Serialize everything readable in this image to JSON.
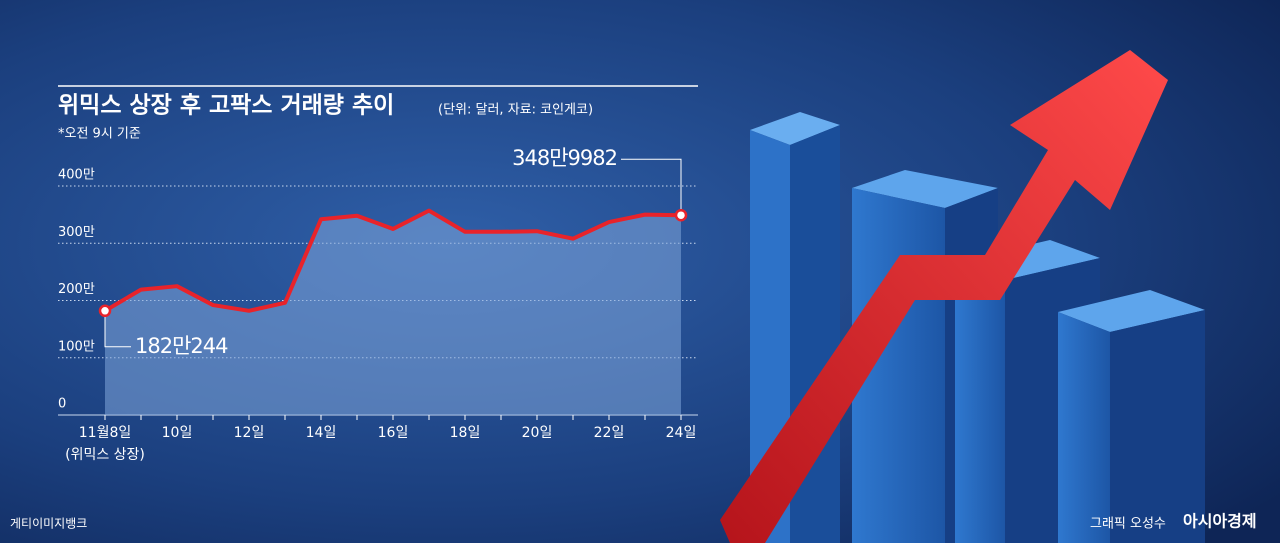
{
  "chart_data": {
    "type": "line",
    "title": "위믹스 상장 후 고팍스 거래량 추이",
    "subtitle": "(단위: 달러, 자료: 코인게코)",
    "note": "*오전 9시 기준",
    "annotation": "(위믹스 상장)",
    "image_credit": "게티이미지뱅크",
    "graphic_credit": "그래픽 오성수",
    "publisher": "아시아경제",
    "categories": [
      "11월8일",
      null,
      "10일",
      null,
      "12일",
      null,
      "14일",
      null,
      "16일",
      null,
      "18일",
      null,
      "20일",
      null,
      "22일",
      null,
      "24일"
    ],
    "series": [
      {
        "name": "고팍스 거래량",
        "color": "#e8232a",
        "values": [
          1820244,
          2190000,
          2250000,
          1920000,
          1820000,
          1960000,
          3420000,
          3480000,
          3250000,
          3570000,
          3200000,
          3200000,
          3210000,
          3080000,
          3370000,
          3500000,
          3489982
        ],
        "value_labels": [
          "182만244",
          null,
          null,
          null,
          null,
          null,
          null,
          null,
          null,
          null,
          null,
          null,
          null,
          null,
          null,
          null,
          "348만9982"
        ]
      }
    ],
    "ylim": [
      0,
      4000000
    ],
    "yticks": [
      0,
      {
        "value": 1000000,
        "label": "100만"
      },
      {
        "value": 2000000,
        "label": "200만"
      },
      {
        "value": 3000000,
        "label": "300만"
      },
      {
        "value": 4000000,
        "label": "400만"
      }
    ],
    "grid": true
  }
}
